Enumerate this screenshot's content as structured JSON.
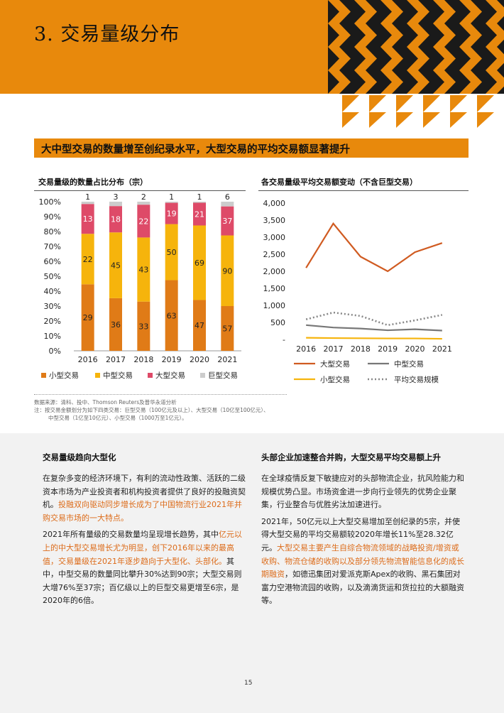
{
  "section_title": "3. 交易量级分布",
  "banner_title": "大中型交易的数量增至创纪录水平，大型交易的平均交易额显著提升",
  "colors": {
    "orange": "#e8890c",
    "small": "#e07b17",
    "medium": "#f6b40c",
    "large": "#de4a68",
    "mega": "#cccccc",
    "line_large": "#d05b21",
    "line_medium": "#777777",
    "line_small": "#f6b40c",
    "line_avg": "#888888",
    "highlight_text": "#dc6b19"
  },
  "chart_data": [
    {
      "type": "bar",
      "title": "交易量级的数量占比分布（宗）",
      "categories": [
        "2016",
        "2017",
        "2018",
        "2019",
        "2020",
        "2021"
      ],
      "series": [
        {
          "name": "小型交易",
          "values": [
            29,
            36,
            33,
            63,
            47,
            57
          ]
        },
        {
          "name": "中型交易",
          "values": [
            22,
            45,
            43,
            50,
            69,
            90
          ]
        },
        {
          "name": "大型交易",
          "values": [
            13,
            18,
            22,
            19,
            21,
            37
          ]
        },
        {
          "name": "巨型交易",
          "values": [
            1,
            3,
            2,
            1,
            1,
            6
          ]
        }
      ],
      "stacked_percent": true,
      "y_ticks": [
        "0%",
        "10%",
        "20%",
        "30%",
        "40%",
        "50%",
        "60%",
        "70%",
        "80%",
        "90%",
        "100%"
      ],
      "ylim": [
        0,
        100
      ],
      "legend_position": "bottom"
    },
    {
      "type": "line",
      "title": "各交易量级平均交易额变动（不含巨型交易）",
      "x": [
        "2016",
        "2017",
        "2018",
        "2019",
        "2020",
        "2021"
      ],
      "series": [
        {
          "name": "大型交易",
          "values": [
            2100,
            3400,
            2430,
            2000,
            2560,
            2830
          ]
        },
        {
          "name": "中型交易",
          "values": [
            420,
            350,
            320,
            270,
            300,
            260
          ]
        },
        {
          "name": "小型交易",
          "values": [
            50,
            40,
            35,
            30,
            30,
            20
          ]
        },
        {
          "name": "平均交易规模",
          "values": [
            590,
            790,
            690,
            420,
            560,
            720
          ]
        }
      ],
      "y_ticks": [
        "-",
        "500",
        "1,000",
        "1,500",
        "2,000",
        "2,500",
        "3,000",
        "3,500",
        "4,000"
      ],
      "ylim": [
        0,
        4000
      ],
      "legend_position": "bottom"
    }
  ],
  "sources": [
    "数据来源：清科、投中、Thomson Reuters及普华永道分析",
    "注：按交易金额划分为如下四类交易：巨型交易（100亿元及以上）、大型交易（10亿至100亿元）、",
    "中型交易（1亿至10亿元）、小型交易（1000万至1亿元）。"
  ],
  "left_col": {
    "heading": "交易量级趋向大型化",
    "p1": [
      {
        "text": "在复杂多变的经济环境下，有利的流动性政策、活跃的二级资本市场为产业投资者和机构投资者提供了良好的投融资契机。",
        "hl": false
      },
      {
        "text": "投融双向驱动同步增长成为了中国物流行业2021年并购交易市场的一大特点。",
        "hl": true
      }
    ],
    "p2": [
      {
        "text": "2021年所有量级的交易数量均呈现增长趋势，其中",
        "hl": false
      },
      {
        "text": "亿元以上的中大型交易增长尤为明显，创下2016年以来的最高值，交易量级在2021年逐步趋向于大型化、头部化。",
        "hl": true
      },
      {
        "text": "其中，中型交易的数量同比攀升30%达到90宗；大型交易则大增76%至37宗；百亿级以上的巨型交易更增至6宗，是2020年的6倍。",
        "hl": false
      }
    ]
  },
  "right_col": {
    "heading": "头部企业加速整合并购，大型交易平均交易额上升",
    "p1": [
      {
        "text": "在全球疫情反复下敏捷应对的头部物流企业，抗风险能力和规模优势凸显。市场资金进一步向行业领先的优势企业聚集，行业整合与优胜劣汰加速进行。",
        "hl": false
      }
    ],
    "p2": [
      {
        "text": "2021年，50亿元以上大型交易增加至创纪录的5宗，并使得大型交易的平均交易额较2020年增长11%至28.32亿元。",
        "hl": false
      },
      {
        "text": "大型交易主要产生自综合物流领域的战略投资/增资或收购、物流仓储的收购以及部分领先物流智能信息化的成长期融资",
        "hl": true
      },
      {
        "text": "，如德迅集团对爱派克斯Apex的收购、黑石集团对富力空港物流园的收购，以及滴滴货运和货拉拉的大额融资等。",
        "hl": false
      }
    ]
  },
  "page_number": "15"
}
